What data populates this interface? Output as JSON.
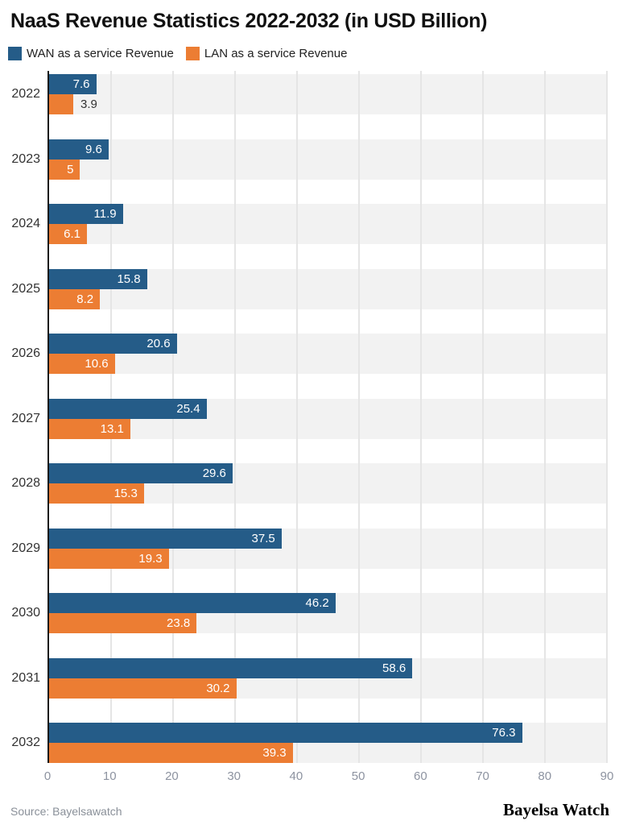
{
  "title": "NaaS Revenue Statistics 2022-2032 (in USD Billion)",
  "legend": [
    {
      "label": "WAN as a service Revenue",
      "color": "#255c88"
    },
    {
      "label": "LAN as a service Revenue",
      "color": "#ec7d33"
    }
  ],
  "chart_data": {
    "type": "bar",
    "orientation": "horizontal",
    "title": "NaaS Revenue Statistics 2022-2032 (in USD Billion)",
    "categories": [
      "2022",
      "2023",
      "2024",
      "2025",
      "2026",
      "2027",
      "2028",
      "2029",
      "2030",
      "2031",
      "2032"
    ],
    "series": [
      {
        "name": "WAN as a service Revenue",
        "color": "#255c88",
        "values": [
          7.6,
          9.6,
          11.9,
          15.8,
          20.6,
          25.4,
          29.6,
          37.5,
          46.2,
          58.6,
          76.3
        ]
      },
      {
        "name": "LAN as a service Revenue",
        "color": "#ec7d33",
        "values": [
          3.9,
          5,
          6.1,
          8.2,
          10.6,
          13.1,
          15.3,
          19.3,
          23.8,
          30.2,
          39.3
        ]
      }
    ],
    "xlim": [
      0,
      90
    ],
    "x_ticks": [
      0,
      10,
      20,
      30,
      40,
      50,
      60,
      70,
      80,
      90
    ],
    "grid": true,
    "legend_position": "top",
    "band_color": "#f2f2f2",
    "gridline_color": "#e5e5e5",
    "axis_line_color": "#1a1a1a",
    "tick_label_color": "#8d93a0"
  },
  "footer": {
    "source": "Source: Bayelsawatch",
    "brand": "Bayelsa Watch"
  }
}
